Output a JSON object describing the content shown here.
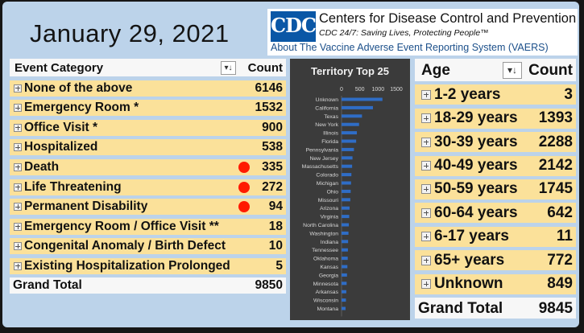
{
  "date": "January 29, 2021",
  "cdc": {
    "logo_text": "CDC",
    "title": "Centers for Disease Control and Prevention",
    "tagline": "CDC 24/7: Saving Lives, Protecting People™",
    "about": "About The Vaccine Adverse Event Reporting System (VAERS)",
    "logo_color": "#0a57a6"
  },
  "event_table": {
    "header": {
      "category": "Event Category",
      "count": "Count",
      "sort_icon": "sort-descending-icon"
    },
    "rows": [
      {
        "label": "None of the above",
        "count": "6146",
        "dot": false
      },
      {
        "label": "Emergency Room *",
        "count": "1532",
        "dot": false
      },
      {
        "label": "Office Visit *",
        "count": "900",
        "dot": false
      },
      {
        "label": "Hospitalized",
        "count": "538",
        "dot": false
      },
      {
        "label": "Death",
        "count": "335",
        "dot": true
      },
      {
        "label": "Life Threatening",
        "count": "272",
        "dot": true
      },
      {
        "label": "Permanent Disability",
        "count": "94",
        "dot": true
      },
      {
        "label": "Emergency Room / Office Visit **",
        "count": "18",
        "dot": false
      },
      {
        "label": "Congenital Anomaly / Birth Defect",
        "count": "10",
        "dot": false
      },
      {
        "label": "Existing Hospitalization Prolonged",
        "count": "5",
        "dot": false
      }
    ],
    "grand_total": {
      "label": "Grand Total",
      "count": "9850"
    },
    "row_color": "#fbe19a",
    "dot_color": "#ff1a00"
  },
  "chart_data": {
    "type": "bar",
    "orientation": "horizontal",
    "title": "Territory Top 25",
    "xlim": [
      0,
      1500
    ],
    "xticks": [
      0,
      500,
      1000,
      1500
    ],
    "categories": [
      "Unknown",
      "California",
      "Texas",
      "New York",
      "Illinois",
      "Florida",
      "Pennsylvania",
      "New Jersey",
      "Massachusetts",
      "Colorado",
      "Michigan",
      "Ohio",
      "Missouri",
      "Arizona",
      "Virginia",
      "North Carolina",
      "Washington",
      "Indiana",
      "Tennessee",
      "Oklahoma",
      "Kansas",
      "Georgia",
      "Minnesota",
      "Arkansas",
      "Wisconsin",
      "Montana"
    ],
    "values": [
      1120,
      860,
      560,
      480,
      420,
      400,
      340,
      300,
      290,
      270,
      260,
      250,
      240,
      220,
      210,
      200,
      190,
      180,
      175,
      170,
      160,
      150,
      140,
      130,
      120,
      110
    ],
    "bar_color": "#2f6dc6",
    "background": "#3b3b3b"
  },
  "age_table": {
    "header": {
      "age": "Age",
      "count": "Count",
      "sort_icon": "sort-descending-icon"
    },
    "rows": [
      {
        "label": "1-2 years",
        "count": "3"
      },
      {
        "label": "18-29 years",
        "count": "1393"
      },
      {
        "label": "30-39 years",
        "count": "2288"
      },
      {
        "label": "40-49 years",
        "count": "2142"
      },
      {
        "label": "50-59 years",
        "count": "1745"
      },
      {
        "label": "60-64 years",
        "count": "642"
      },
      {
        "label": "6-17 years",
        "count": "11"
      },
      {
        "label": "65+ years",
        "count": "772"
      },
      {
        "label": "Unknown",
        "count": "849"
      }
    ],
    "grand_total": {
      "label": "Grand Total",
      "count": "9845"
    }
  }
}
